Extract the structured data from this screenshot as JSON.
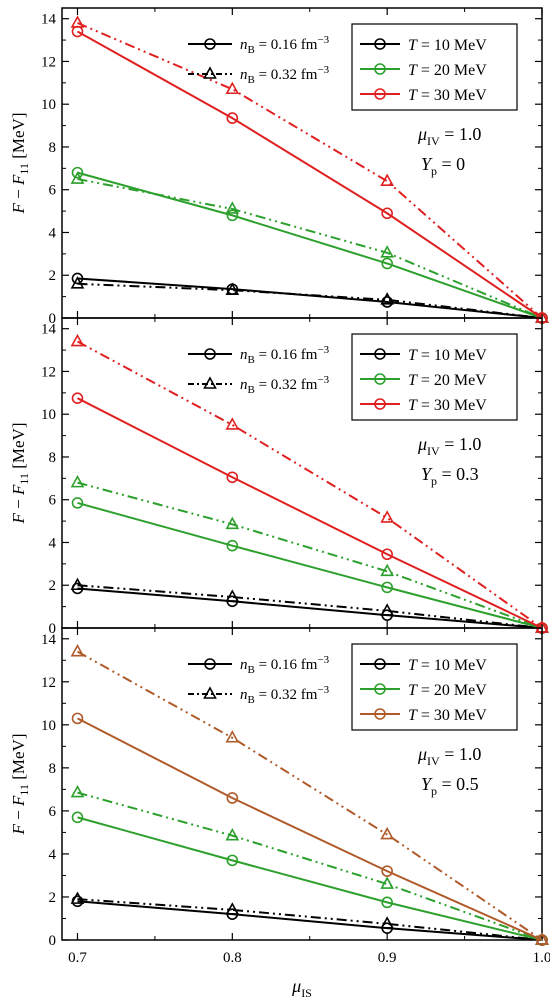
{
  "colors": {
    "t10": "#000000",
    "t20": "#2ca02c",
    "t30": "#e02020",
    "t30_alt": "#b05a2a",
    "axis": "#000000"
  },
  "chart_data": [
    {
      "type": "line",
      "panel_index": 0,
      "x": [
        0.7,
        0.8,
        0.9,
        1.0
      ],
      "xlim": [
        0.69,
        1.0
      ],
      "ylim": [
        0,
        14.5
      ],
      "xticks": [
        "0.7",
        "0.8",
        "0.9",
        "1.0"
      ],
      "yticks": [
        "0",
        "2",
        "4",
        "6",
        "8",
        "10",
        "12",
        "14"
      ],
      "ylabel": "F − F₁₁ [MeV]",
      "annotations": [
        "μIV = 1.0",
        "Yp = 0"
      ],
      "legend_density": [
        "nB = 0.16 fm⁻³",
        "nB = 0.32 fm⁻³"
      ],
      "legend_temperature": [
        "T = 10 MeV",
        "T = 20 MeV",
        "T = 30 MeV"
      ],
      "series": [
        {
          "T": 10,
          "nB": 0.16,
          "color": "#000000",
          "marker": "circle",
          "values": [
            1.85,
            1.35,
            0.75,
            0
          ]
        },
        {
          "T": 10,
          "nB": 0.32,
          "color": "#000000",
          "marker": "triangle",
          "values": [
            1.6,
            1.3,
            0.85,
            0
          ]
        },
        {
          "T": 20,
          "nB": 0.16,
          "color": "#2ca02c",
          "marker": "circle",
          "values": [
            6.8,
            4.8,
            2.55,
            0
          ]
        },
        {
          "T": 20,
          "nB": 0.32,
          "color": "#2ca02c",
          "marker": "triangle",
          "values": [
            6.5,
            5.1,
            3.05,
            0
          ]
        },
        {
          "T": 30,
          "nB": 0.16,
          "color": "#e02020",
          "marker": "circle",
          "values": [
            13.4,
            9.35,
            4.9,
            0
          ]
        },
        {
          "T": 30,
          "nB": 0.32,
          "color": "#e02020",
          "marker": "triangle",
          "values": [
            13.8,
            10.7,
            6.4,
            0
          ]
        }
      ]
    },
    {
      "type": "line",
      "panel_index": 1,
      "x": [
        0.7,
        0.8,
        0.9,
        1.0
      ],
      "xlim": [
        0.69,
        1.0
      ],
      "ylim": [
        0,
        14.5
      ],
      "xticks": [
        "0.7",
        "0.8",
        "0.9",
        "1.0"
      ],
      "yticks": [
        "0",
        "2",
        "4",
        "6",
        "8",
        "10",
        "12",
        "14"
      ],
      "ylabel": "F − F₁₁ [MeV]",
      "annotations": [
        "μIV = 1.0",
        "Yp = 0.3"
      ],
      "legend_density": [
        "nB = 0.16 fm⁻³",
        "nB = 0.32 fm⁻³"
      ],
      "legend_temperature": [
        "T = 10 MeV",
        "T = 20 MeV",
        "T = 30 MeV"
      ],
      "series": [
        {
          "T": 10,
          "nB": 0.16,
          "color": "#000000",
          "marker": "circle",
          "values": [
            1.85,
            1.25,
            0.6,
            0
          ]
        },
        {
          "T": 10,
          "nB": 0.32,
          "color": "#000000",
          "marker": "triangle",
          "values": [
            2.0,
            1.45,
            0.8,
            0
          ]
        },
        {
          "T": 20,
          "nB": 0.16,
          "color": "#2ca02c",
          "marker": "circle",
          "values": [
            5.85,
            3.85,
            1.9,
            0
          ]
        },
        {
          "T": 20,
          "nB": 0.32,
          "color": "#2ca02c",
          "marker": "triangle",
          "values": [
            6.8,
            4.85,
            2.65,
            0
          ]
        },
        {
          "T": 30,
          "nB": 0.16,
          "color": "#e02020",
          "marker": "circle",
          "values": [
            10.75,
            7.05,
            3.45,
            0
          ]
        },
        {
          "T": 30,
          "nB": 0.32,
          "color": "#e02020",
          "marker": "triangle",
          "values": [
            13.4,
            9.5,
            5.15,
            0
          ]
        }
      ]
    },
    {
      "type": "line",
      "panel_index": 2,
      "x": [
        0.7,
        0.8,
        0.9,
        1.0
      ],
      "xlim": [
        0.69,
        1.0
      ],
      "ylim": [
        0,
        14.5
      ],
      "xticks": [
        "0.7",
        "0.8",
        "0.9",
        "1.0"
      ],
      "yticks": [
        "0",
        "2",
        "4",
        "6",
        "8",
        "10",
        "12",
        "14"
      ],
      "xlabel": "μIS",
      "ylabel": "F − F₁₁ [MeV]",
      "annotations": [
        "μIV = 1.0",
        "Yp = 0.5"
      ],
      "legend_density": [
        "nB = 0.16 fm⁻³",
        "nB = 0.32 fm⁻³"
      ],
      "legend_temperature": [
        "T = 10 MeV",
        "T = 20 MeV",
        "T = 30 MeV"
      ],
      "series": [
        {
          "T": 10,
          "nB": 0.16,
          "color": "#000000",
          "marker": "circle",
          "values": [
            1.8,
            1.2,
            0.55,
            0
          ]
        },
        {
          "T": 10,
          "nB": 0.32,
          "color": "#000000",
          "marker": "triangle",
          "values": [
            1.9,
            1.4,
            0.75,
            0
          ]
        },
        {
          "T": 20,
          "nB": 0.16,
          "color": "#2ca02c",
          "marker": "circle",
          "values": [
            5.7,
            3.7,
            1.75,
            0
          ]
        },
        {
          "T": 20,
          "nB": 0.32,
          "color": "#2ca02c",
          "marker": "triangle",
          "values": [
            6.85,
            4.85,
            2.6,
            0
          ]
        },
        {
          "T": 30,
          "nB": 0.16,
          "color": "#b05a2a",
          "marker": "circle",
          "values": [
            10.3,
            6.6,
            3.2,
            0
          ]
        },
        {
          "T": 30,
          "nB": 0.32,
          "color": "#b05a2a",
          "marker": "triangle",
          "values": [
            13.4,
            9.4,
            4.9,
            0
          ]
        }
      ]
    }
  ]
}
